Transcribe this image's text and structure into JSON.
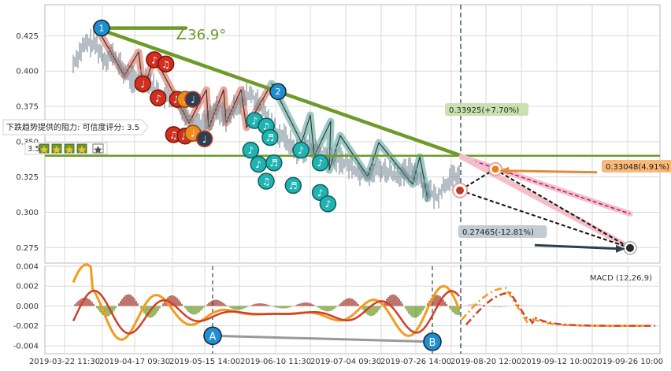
{
  "chart_data": [
    {
      "type": "candlestick",
      "panel": "price",
      "x_ticks": [
        "2019-03-22 11:30",
        "2019-04-17 09:30",
        "2019-05-15 14:00",
        "2019-06-10 11:30",
        "2019-07-04 09:30",
        "2019-07-26 14:00",
        "2019-08-20 12:00",
        "2019-09-12 10:00",
        "2019-09-26 10:00"
      ],
      "y_ticks": [
        "0.425",
        "0.400",
        "0.375",
        "0.350",
        "0.325",
        "0.300",
        "0.275"
      ],
      "ylim": [
        0.264,
        0.447
      ],
      "grid": true,
      "price_path": [
        [
          0.0,
          0.405
        ],
        [
          0.02,
          0.415
        ],
        [
          0.04,
          0.42
        ],
        [
          0.06,
          0.418
        ],
        [
          0.08,
          0.408
        ],
        [
          0.1,
          0.412
        ],
        [
          0.13,
          0.4
        ],
        [
          0.16,
          0.392
        ],
        [
          0.19,
          0.395
        ],
        [
          0.22,
          0.384
        ],
        [
          0.25,
          0.38
        ],
        [
          0.28,
          0.374
        ],
        [
          0.31,
          0.364
        ],
        [
          0.34,
          0.362
        ],
        [
          0.37,
          0.372
        ],
        [
          0.4,
          0.366
        ],
        [
          0.43,
          0.378
        ],
        [
          0.46,
          0.384
        ],
        [
          0.49,
          0.372
        ],
        [
          0.52,
          0.358
        ],
        [
          0.55,
          0.352
        ],
        [
          0.58,
          0.342
        ],
        [
          0.61,
          0.346
        ],
        [
          0.64,
          0.34
        ],
        [
          0.67,
          0.338
        ],
        [
          0.7,
          0.336
        ],
        [
          0.73,
          0.33
        ],
        [
          0.76,
          0.326
        ],
        [
          0.79,
          0.331
        ],
        [
          0.82,
          0.328
        ],
        [
          0.85,
          0.326
        ],
        [
          0.88,
          0.33
        ],
        [
          0.91,
          0.318
        ],
        [
          0.94,
          0.31
        ],
        [
          0.97,
          0.322
        ],
        [
          1.0,
          0.326
        ]
      ],
      "trendlines": [
        {
          "kind": "resistance",
          "from": [
            "2019-03-22 11:30",
            0.429
          ],
          "to": [
            "2019-08-20 12:00",
            0.34
          ],
          "color": "#6e9a2a"
        },
        {
          "kind": "horizontal",
          "value": 0.34,
          "color": "#6e9a2a"
        }
      ],
      "angle_label": "∠36.9°",
      "pattern_points": [
        {
          "label": "1",
          "x": "2019-03-22 11:30",
          "y": 0.4305
        },
        {
          "label": "2",
          "x": "2019-06-10 11:30",
          "y": 0.3855
        }
      ],
      "signals": [
        {
          "x": 0.18,
          "y": 0.391,
          "symbol": "♩",
          "color": "red"
        },
        {
          "x": 0.21,
          "y": 0.408,
          "symbol": "♪",
          "color": "red"
        },
        {
          "x": 0.24,
          "y": 0.405,
          "symbol": "♫",
          "color": "red"
        },
        {
          "x": 0.22,
          "y": 0.381,
          "symbol": "♪",
          "color": "red"
        },
        {
          "x": 0.27,
          "y": 0.38,
          "symbol": "♬",
          "color": "red"
        },
        {
          "x": 0.29,
          "y": 0.38,
          "symbol": "♩",
          "color": "orange"
        },
        {
          "x": 0.31,
          "y": 0.38,
          "symbol": "♩",
          "color": "dark"
        },
        {
          "x": 0.26,
          "y": 0.355,
          "symbol": "♫",
          "color": "red"
        },
        {
          "x": 0.29,
          "y": 0.354,
          "symbol": "♬",
          "color": "red"
        },
        {
          "x": 0.31,
          "y": 0.356,
          "symbol": "♩",
          "color": "orange"
        },
        {
          "x": 0.34,
          "y": 0.352,
          "symbol": "♩",
          "color": "dark"
        },
        {
          "x": 0.47,
          "y": 0.365,
          "symbol": "♪",
          "color": "teal"
        },
        {
          "x": 0.5,
          "y": 0.361,
          "symbol": "♫",
          "color": "teal"
        },
        {
          "x": 0.51,
          "y": 0.353,
          "symbol": "♬",
          "color": "teal"
        },
        {
          "x": 0.46,
          "y": 0.344,
          "symbol": "♪",
          "color": "teal"
        },
        {
          "x": 0.48,
          "y": 0.334,
          "symbol": "♪",
          "color": "teal"
        },
        {
          "x": 0.52,
          "y": 0.335,
          "symbol": "♬",
          "color": "teal"
        },
        {
          "x": 0.5,
          "y": 0.322,
          "symbol": "♫",
          "color": "teal"
        },
        {
          "x": 0.59,
          "y": 0.344,
          "symbol": "♪",
          "color": "teal"
        },
        {
          "x": 0.64,
          "y": 0.335,
          "symbol": "♪",
          "color": "teal"
        },
        {
          "x": 0.57,
          "y": 0.319,
          "symbol": "♬",
          "color": "teal"
        },
        {
          "x": 0.64,
          "y": 0.314,
          "symbol": "♪",
          "color": "teal"
        },
        {
          "x": 0.66,
          "y": 0.306,
          "symbol": "♪",
          "color": "teal"
        }
      ],
      "forecasts": [
        {
          "label": "0.33925(+7.70%)",
          "value": 0.33925,
          "kind": "upper"
        },
        {
          "label": "0.33048(4.91%)",
          "value": 0.33048,
          "kind": "middle"
        },
        {
          "label": "0.27465(-12.81%)",
          "value": 0.27465,
          "kind": "lower"
        }
      ],
      "resistance_note": {
        "text": "下跌趋势提供的阻力: 可信度评分: 3.5",
        "score": "3.5"
      }
    },
    {
      "type": "macd",
      "panel": "indicator",
      "title": "MACD (12,26,9)",
      "y_ticks": [
        "0.004",
        "0.002",
        "0.000",
        "-0.002",
        "-0.004"
      ],
      "ylim": [
        -0.0048,
        0.004
      ],
      "divergence_points": [
        {
          "label": "A",
          "x": "2019-05-15 14:00",
          "y": -0.003
        },
        {
          "label": "B",
          "x": "2019-07-26 14:00",
          "y": -0.0036
        }
      ]
    }
  ]
}
